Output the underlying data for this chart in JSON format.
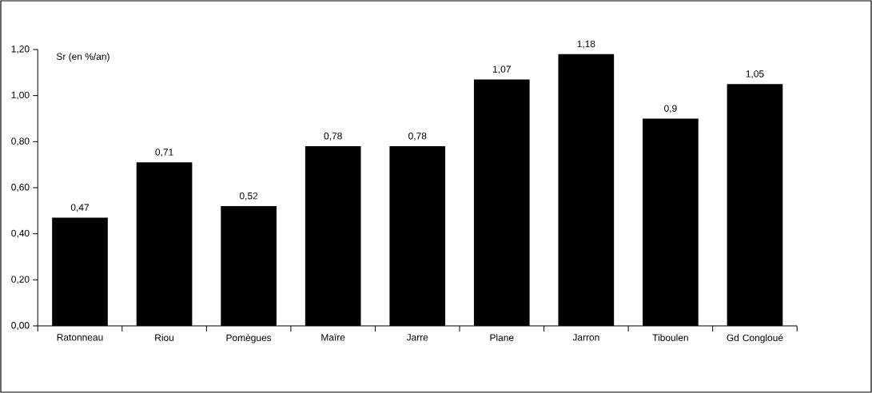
{
  "chart_data": {
    "type": "bar",
    "ylabel": "Sr (en %/an)",
    "categories": [
      "Ratonneau",
      "Riou",
      "Pomègues",
      "Maïre",
      "Jarre",
      "Plane",
      "Jarron",
      "Tiboulen",
      "Gd Congloué"
    ],
    "values": [
      0.47,
      0.71,
      0.52,
      0.78,
      0.78,
      1.07,
      1.18,
      0.9,
      1.05
    ],
    "value_labels": [
      "0,47",
      "0,71",
      "0,52",
      "0,78",
      "0,78",
      "1,07",
      "1,18",
      "0,9",
      "1,05"
    ],
    "color": "#000000",
    "ylim": [
      0,
      1.2
    ],
    "yticks": [
      {
        "value": 0,
        "label": "0,00"
      },
      {
        "value": 0.2,
        "label": "0,20"
      },
      {
        "value": 0.4,
        "label": "0,40"
      },
      {
        "value": 0.6,
        "label": "0,60"
      },
      {
        "value": 0.8,
        "label": "0,80"
      },
      {
        "value": 1.0,
        "label": "1,00"
      },
      {
        "value": 1.2,
        "label": "1,20"
      }
    ]
  }
}
